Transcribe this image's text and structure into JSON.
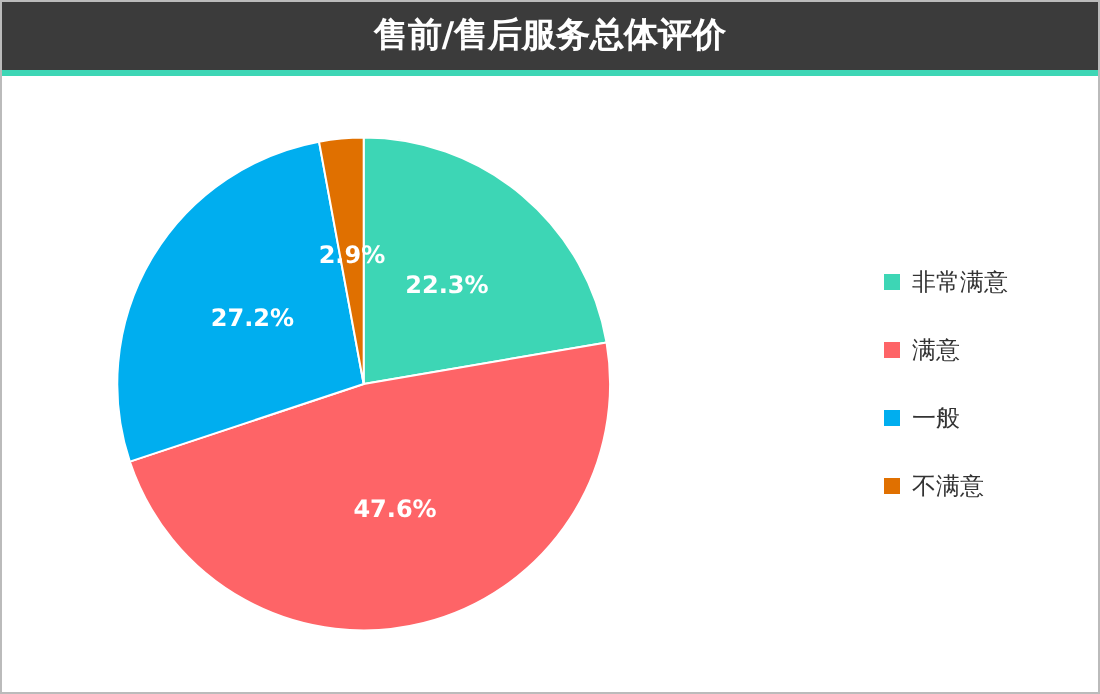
{
  "chart_data": {
    "type": "pie",
    "title": "售前/售后服务总体评价",
    "categories": [
      "非常满意",
      "满意",
      "一般",
      "不满意"
    ],
    "values": [
      22.3,
      47.6,
      27.2,
      2.9
    ],
    "colors": [
      "#3dd6b5",
      "#fe6467",
      "#00aeef",
      "#e07000"
    ],
    "value_labels": [
      "22.3%",
      "47.6%",
      "27.2%",
      "2.9%"
    ],
    "legend": "right"
  }
}
